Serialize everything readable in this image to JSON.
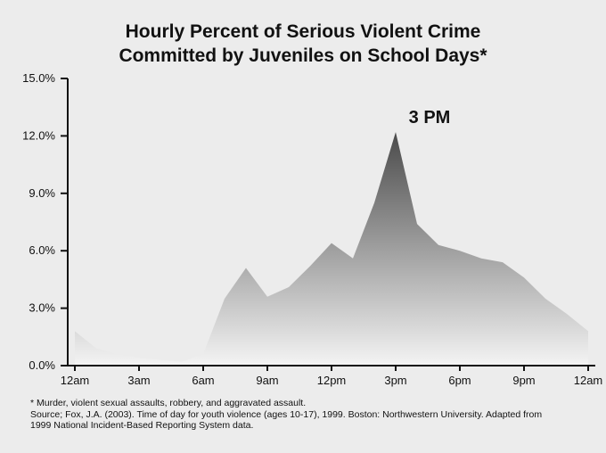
{
  "chart_data": {
    "type": "area",
    "title": [
      "Hourly Percent of Serious Violent Crime",
      "Committed by Juveniles on School Days*"
    ],
    "xlabel": "",
    "ylabel": "",
    "x_tick_labels": [
      "12am",
      "3am",
      "6am",
      "9am",
      "12pm",
      "3pm",
      "6pm",
      "9pm",
      "12am"
    ],
    "y_ticks": [
      0,
      3,
      6,
      9,
      12,
      15
    ],
    "y_tick_labels": [
      "0.0%",
      "3.0%",
      "6.0%",
      "9.0%",
      "12.0%",
      "15.0%"
    ],
    "ylim": [
      0,
      15
    ],
    "x_hours": [
      0,
      1,
      2,
      3,
      4,
      5,
      6,
      7,
      8,
      9,
      10,
      11,
      12,
      13,
      14,
      15,
      16,
      17,
      18,
      19,
      20,
      21,
      22,
      23,
      24
    ],
    "values": [
      1.8,
      0.9,
      0.6,
      0.4,
      0.3,
      0.2,
      0.6,
      3.5,
      5.1,
      3.6,
      4.1,
      5.2,
      6.4,
      5.6,
      8.5,
      12.2,
      7.4,
      6.3,
      6.0,
      5.6,
      5.4,
      4.6,
      3.5,
      2.7,
      1.8
    ],
    "annotation": {
      "text": "3 PM",
      "x_hour": 15
    },
    "grid": false,
    "gradient_colors": [
      "#4a4a4a",
      "#f4f4f4"
    ]
  },
  "footnotes": [
    "* Murder, violent sexual assaults, robbery, and aggravated assault.",
    "Source; Fox, J.A. (2003). Time of day for youth violence (ages 10-17), 1999. Boston: Northwestern University. Adapted from",
    "1999 National Incident-Based Reporting System data."
  ]
}
